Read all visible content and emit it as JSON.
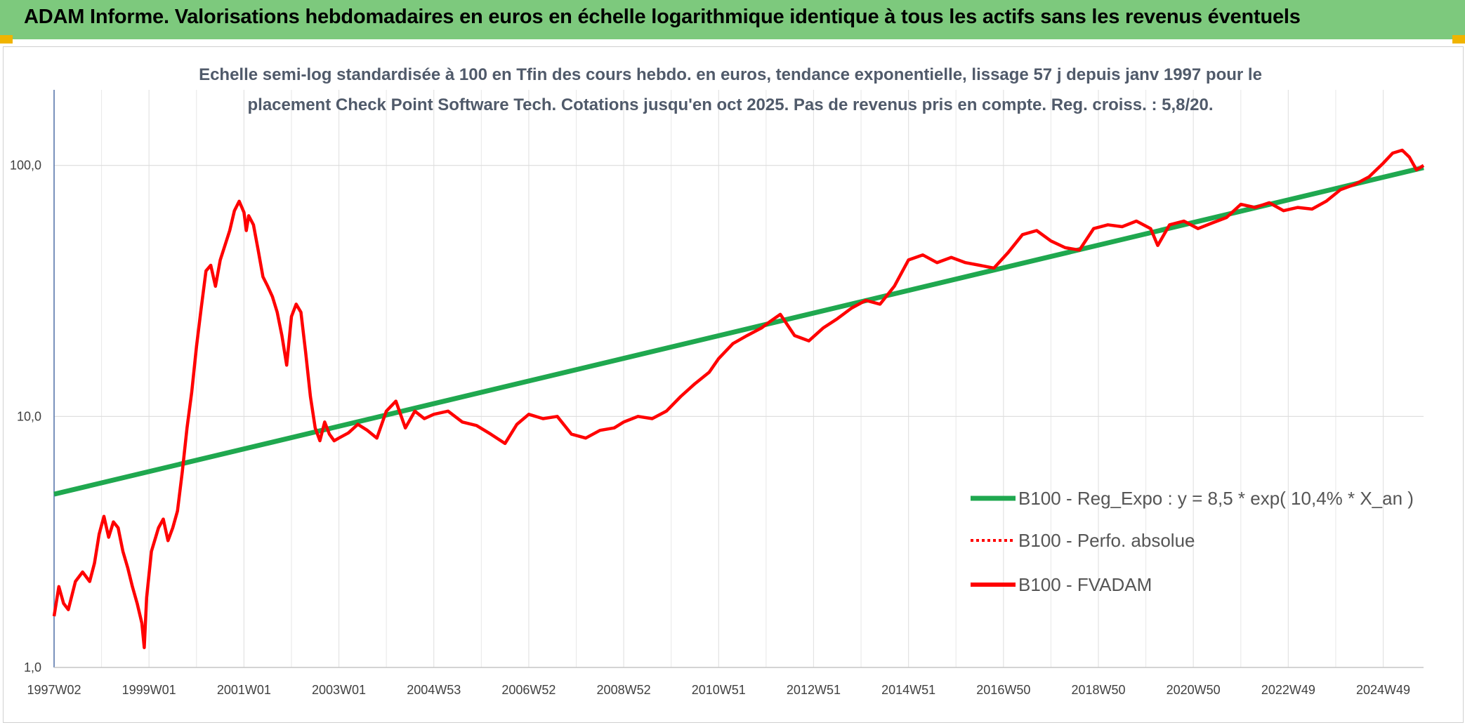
{
  "header": {
    "title": "ADAM Informe. Valorisations hebdomadaires en euros en échelle logarithmique identique à tous les actifs sans les revenus éventuels"
  },
  "colors": {
    "header_band": "#7dc97d",
    "trend": "#1fa84f",
    "series": "#ff0000",
    "corner": "#f0b400"
  },
  "chart_data": {
    "type": "line",
    "title_lines": [
      "Echelle semi-log standardisée à 100 en Tfin des cours hebdo. en euros, tendance exponentielle, lissage 57 j depuis janv 1997 pour le",
      "placement Check Point Software Tech. Cotations jusqu'en oct 2025. Pas de revenus pris en compte. Reg. croiss. : 5,8/20."
    ],
    "y_scale": "log",
    "ylim": [
      1,
      200
    ],
    "xlim": [
      1997.0,
      2025.85
    ],
    "grid": true,
    "legend_position": "right",
    "y_ticks": [
      {
        "value": 1,
        "label": "1,0"
      },
      {
        "value": 10,
        "label": "10,0"
      },
      {
        "value": 100,
        "label": "100,0"
      }
    ],
    "x_ticks": [
      {
        "value": 1997.0,
        "label": "1997W02"
      },
      {
        "value": 1999.0,
        "label": "1999W01"
      },
      {
        "value": 2001.0,
        "label": "2001W01"
      },
      {
        "value": 2003.0,
        "label": "2003W01"
      },
      {
        "value": 2005.0,
        "label": "2004W53"
      },
      {
        "value": 2007.0,
        "label": "2006W52"
      },
      {
        "value": 2009.0,
        "label": "2008W52"
      },
      {
        "value": 2011.0,
        "label": "2010W51"
      },
      {
        "value": 2013.0,
        "label": "2012W51"
      },
      {
        "value": 2015.0,
        "label": "2014W51"
      },
      {
        "value": 2017.0,
        "label": "2016W50"
      },
      {
        "value": 2019.0,
        "label": "2018W50"
      },
      {
        "value": 2021.0,
        "label": "2020W50"
      },
      {
        "value": 2023.0,
        "label": "2022W49"
      },
      {
        "value": 2025.0,
        "label": "2024W49"
      }
    ],
    "series": [
      {
        "name": "B100 - Reg_Expo : y = 8,5 * exp( 10,4% *  X_an )",
        "style": "solid-thick",
        "color": "#1fa84f",
        "x": [
          1997.0,
          2025.85
        ],
        "y": [
          4.9,
          98
        ]
      },
      {
        "name": "B100 - Perfo. absolue",
        "style": "dotted",
        "color": "#ff0000",
        "x": [],
        "y": []
      },
      {
        "name": "B100 - FVADAM",
        "style": "solid",
        "color": "#ff0000",
        "x": [
          1997.0,
          1997.1,
          1997.2,
          1997.3,
          1997.45,
          1997.6,
          1997.75,
          1997.85,
          1997.95,
          1998.05,
          1998.15,
          1998.25,
          1998.35,
          1998.45,
          1998.55,
          1998.65,
          1998.75,
          1998.85,
          1998.9,
          1998.95,
          1999.05,
          1999.2,
          1999.3,
          1999.4,
          1999.5,
          1999.6,
          1999.7,
          1999.8,
          1999.9,
          2000.0,
          2000.1,
          2000.2,
          2000.3,
          2000.4,
          2000.5,
          2000.6,
          2000.7,
          2000.8,
          2000.9,
          2001.0,
          2001.05,
          2001.1,
          2001.2,
          2001.3,
          2001.4,
          2001.5,
          2001.6,
          2001.7,
          2001.8,
          2001.9,
          2002.0,
          2002.1,
          2002.2,
          2002.3,
          2002.4,
          2002.5,
          2002.6,
          2002.7,
          2002.8,
          2002.9,
          2003.0,
          2003.2,
          2003.4,
          2003.6,
          2003.8,
          2004.0,
          2004.2,
          2004.4,
          2004.6,
          2004.8,
          2005.0,
          2005.3,
          2005.6,
          2005.9,
          2006.2,
          2006.5,
          2006.75,
          2007.0,
          2007.3,
          2007.6,
          2007.9,
          2008.2,
          2008.5,
          2008.8,
          2009.0,
          2009.3,
          2009.6,
          2009.9,
          2010.2,
          2010.5,
          2010.8,
          2011.0,
          2011.3,
          2011.6,
          2011.9,
          2012.1,
          2012.3,
          2012.6,
          2012.9,
          2013.2,
          2013.5,
          2013.8,
          2014.1,
          2014.4,
          2014.7,
          2015.0,
          2015.3,
          2015.6,
          2015.9,
          2016.2,
          2016.5,
          2016.8,
          2017.1,
          2017.4,
          2017.7,
          2018.0,
          2018.3,
          2018.6,
          2018.9,
          2019.2,
          2019.5,
          2019.8,
          2020.1,
          2020.25,
          2020.5,
          2020.8,
          2021.1,
          2021.4,
          2021.7,
          2022.0,
          2022.3,
          2022.6,
          2022.9,
          2023.2,
          2023.5,
          2023.8,
          2024.1,
          2024.4,
          2024.7,
          2025.0,
          2025.2,
          2025.4,
          2025.55,
          2025.7,
          2025.85
        ],
        "y": [
          1.6,
          2.1,
          1.8,
          1.7,
          2.2,
          2.4,
          2.2,
          2.6,
          3.4,
          4.0,
          3.3,
          3.8,
          3.6,
          2.9,
          2.5,
          2.1,
          1.8,
          1.5,
          1.2,
          1.9,
          2.9,
          3.6,
          3.9,
          3.2,
          3.6,
          4.2,
          6.0,
          9.0,
          12.5,
          19.0,
          27.0,
          38.0,
          40.0,
          33.0,
          42.0,
          48.0,
          55.0,
          66.0,
          72.0,
          65.0,
          55.0,
          63.0,
          58.0,
          46.0,
          36.0,
          33.0,
          30.0,
          26.0,
          21.0,
          16.0,
          25.0,
          28.0,
          26.0,
          18.0,
          12.0,
          9.0,
          8.0,
          9.5,
          8.5,
          8.0,
          8.2,
          8.6,
          9.3,
          8.8,
          8.2,
          10.5,
          11.5,
          9.0,
          10.5,
          9.8,
          10.2,
          10.5,
          9.5,
          9.2,
          8.5,
          7.8,
          9.3,
          10.2,
          9.8,
          10.0,
          8.5,
          8.2,
          8.8,
          9.0,
          9.5,
          10.0,
          9.8,
          10.5,
          12.0,
          13.5,
          15.0,
          17.0,
          19.5,
          21.0,
          22.5,
          24.0,
          25.5,
          21.0,
          20.0,
          22.5,
          24.5,
          27.0,
          29.0,
          28.0,
          33.0,
          42.0,
          44.0,
          41.0,
          43.0,
          41.0,
          40.0,
          39.0,
          45.0,
          53.0,
          55.0,
          50.0,
          47.0,
          46.0,
          56.0,
          58.0,
          57.0,
          60.0,
          56.0,
          48.0,
          58.0,
          60.0,
          56.0,
          59.0,
          62.0,
          70.0,
          68.0,
          71.0,
          66.0,
          68.0,
          67.0,
          72.0,
          80.0,
          84.0,
          90.0,
          102.0,
          112.0,
          115.0,
          108.0,
          96.0,
          100.0
        ]
      }
    ]
  }
}
